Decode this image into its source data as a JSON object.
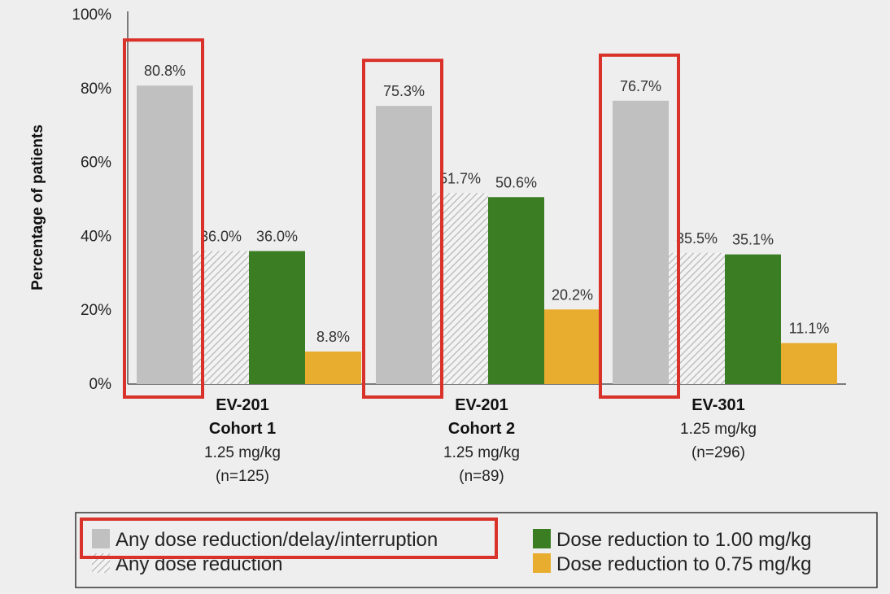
{
  "chart_data": {
    "type": "bar",
    "ylabel": "Percentage of patients",
    "ylim": [
      0,
      100
    ],
    "yticks": [
      "0%",
      "20%",
      "40%",
      "60%",
      "80%",
      "100%"
    ],
    "grid": false,
    "legend_position": "bottom",
    "categories": [
      {
        "name": "EV-201",
        "lines": [
          "Cohort 1",
          "1.25 mg/kg",
          "(n=125)"
        ],
        "name_bold_lines": 2
      },
      {
        "name": "EV-201",
        "lines": [
          "Cohort 2",
          "1.25 mg/kg",
          "(n=89)"
        ],
        "name_bold_lines": 2
      },
      {
        "name": "EV-301",
        "lines": [
          "1.25 mg/kg",
          "(n=296)"
        ],
        "name_bold_lines": 1
      }
    ],
    "series": [
      {
        "name": "Any dose reduction/delay/interruption",
        "color": "#c0c0c0",
        "pattern": "solid",
        "values": [
          80.8,
          75.3,
          76.7
        ],
        "labels": [
          "80.8%",
          "75.3%",
          "76.7%"
        ]
      },
      {
        "name": "Any dose reduction",
        "color": "#bdbdbd",
        "pattern": "hatched",
        "values": [
          36.0,
          51.7,
          35.5
        ],
        "labels": [
          "36.0%",
          "51.7%",
          "35.5%"
        ]
      },
      {
        "name": "Dose reduction to 1.00 mg/kg",
        "color": "#3a7d22",
        "pattern": "solid",
        "values": [
          36.0,
          50.6,
          35.1
        ],
        "labels": [
          "36.0%",
          "50.6%",
          "35.1%"
        ]
      },
      {
        "name": "Dose reduction to 0.75 mg/kg",
        "color": "#e8ad2f",
        "pattern": "solid",
        "values": [
          8.8,
          20.2,
          11.1
        ],
        "labels": [
          "8.8%",
          "20.2%",
          "11.1%"
        ]
      }
    ],
    "highlight": {
      "series_index": 0,
      "color": "#d9322a"
    }
  }
}
